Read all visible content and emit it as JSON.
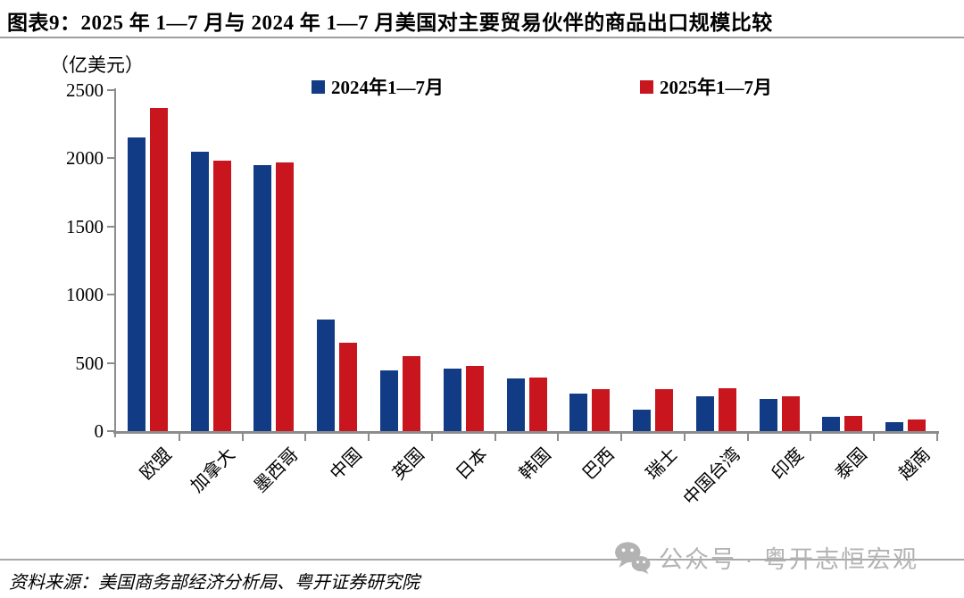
{
  "figure": {
    "title": "图表9：2025 年 1—7 月与 2024 年 1—7 月美国对主要贸易伙伴的商品出口规模比较",
    "unit_label": "（亿美元）",
    "source": "资料来源：美国商务部经济分析局、粤开证券研究院",
    "watermark_text": "公众号 · 粤开志恒宏观",
    "watermark_icon": "wechat-icon"
  },
  "chart_data": {
    "type": "bar",
    "title": "2025年1—7月与2024年1—7月美国对主要贸易伙伴的商品出口规模比较",
    "categories": [
      "欧盟",
      "加拿大",
      "墨西哥",
      "中国",
      "英国",
      "日本",
      "韩国",
      "巴西",
      "瑞士",
      "中国台湾",
      "印度",
      "泰国",
      "越南"
    ],
    "series": [
      {
        "name": "2024年1—7月",
        "color": "#113C85",
        "values": [
          2150,
          2050,
          1950,
          815,
          445,
          458,
          388,
          272,
          155,
          253,
          237,
          102,
          68
        ]
      },
      {
        "name": "2025年1—7月",
        "color": "#C9151E",
        "values": [
          2370,
          1985,
          1970,
          650,
          548,
          478,
          395,
          310,
          308,
          312,
          258,
          110,
          83
        ]
      }
    ],
    "xlabel": "",
    "ylabel": "亿美元",
    "ylim": [
      0,
      2500
    ],
    "yticks": [
      0,
      500,
      1000,
      1500,
      2000,
      2500
    ],
    "grid": false,
    "legend_position": "top"
  },
  "colors": {
    "axis": "#8c8c8c",
    "text": "#000000",
    "watermark": "#b3b3b3",
    "rule": "#9e9e9e"
  }
}
